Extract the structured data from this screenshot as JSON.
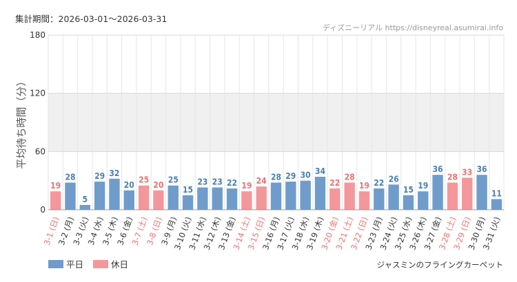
{
  "period": "集計期間：2026-03-01～2026-03-31",
  "credit": "ディズニーリアル https://disneyreal.asumirai.info",
  "attraction": "ジャスミンのフライングカーペット",
  "legend": {
    "weekday": "平日",
    "holiday": "休日"
  },
  "colors": {
    "weekday": "#6f9ccb",
    "holiday": "#f4979b",
    "weekday_label": "#4a7fb5",
    "holiday_label": "#f07070",
    "band": "#f0f0f0"
  },
  "chart_data": {
    "type": "bar",
    "ylabel": "平均待ち時間（分）",
    "ylim": [
      0,
      180
    ],
    "yticks": [
      0,
      60,
      120,
      180
    ],
    "categories": [
      "3-1 (日)",
      "3-2 (月)",
      "3-3 (火)",
      "3-4 (水)",
      "3-5 (木)",
      "3-6 (金)",
      "3-7 (土)",
      "3-8 (日)",
      "3-9 (月)",
      "3-10 (火)",
      "3-11 (水)",
      "3-12 (木)",
      "3-13 (金)",
      "3-14 (土)",
      "3-15 (日)",
      "3-16 (月)",
      "3-17 (火)",
      "3-18 (水)",
      "3-19 (木)",
      "3-20 (金)",
      "3-21 (土)",
      "3-22 (日)",
      "3-23 (月)",
      "3-24 (火)",
      "3-25 (水)",
      "3-26 (木)",
      "3-27 (金)",
      "3-28 (土)",
      "3-29 (日)",
      "3-30 (月)",
      "3-31 (火)"
    ],
    "values": [
      19,
      28,
      5,
      29,
      32,
      20,
      25,
      20,
      25,
      15,
      23,
      23,
      22,
      19,
      24,
      28,
      29,
      30,
      34,
      22,
      28,
      19,
      22,
      26,
      15,
      19,
      36,
      28,
      33,
      36,
      11
    ],
    "holiday": [
      true,
      false,
      false,
      false,
      false,
      false,
      true,
      true,
      false,
      false,
      false,
      false,
      false,
      true,
      true,
      false,
      false,
      false,
      false,
      true,
      true,
      true,
      false,
      false,
      false,
      false,
      false,
      true,
      true,
      false,
      false
    ],
    "legend_position": "bottom-left",
    "grid": true
  }
}
